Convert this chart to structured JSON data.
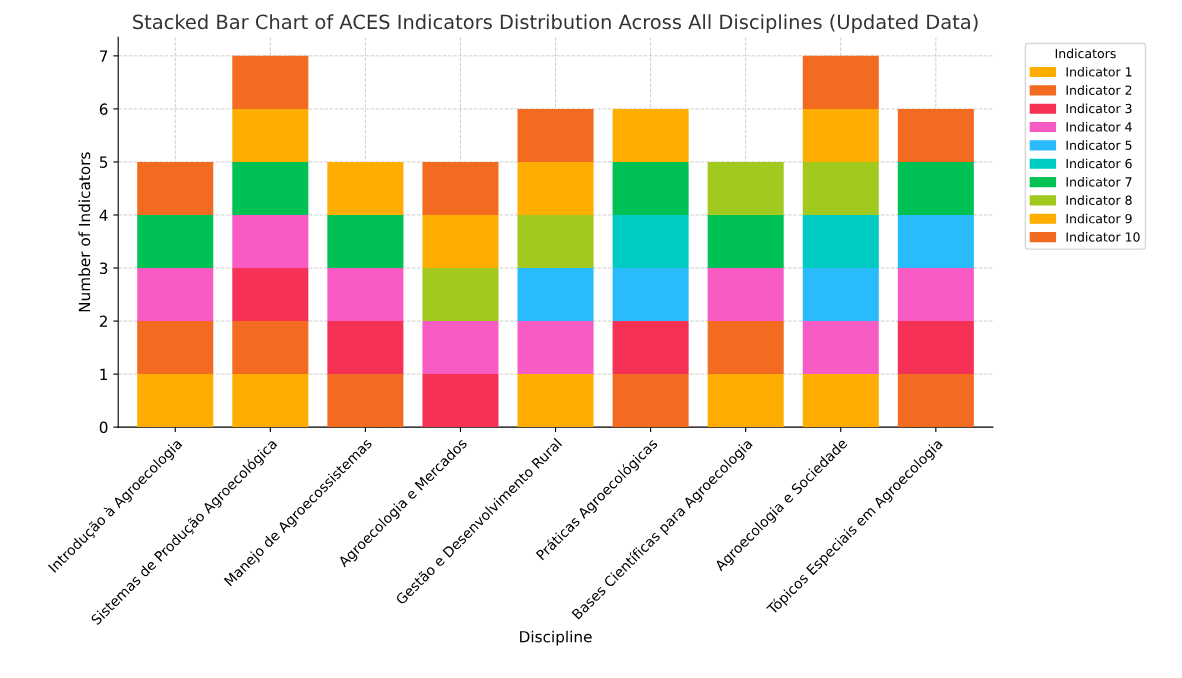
{
  "chart_data": {
    "type": "bar",
    "stacked": true,
    "title": "Stacked Bar Chart of ACES Indicators Distribution Across All Disciplines (Updated Data)",
    "xlabel": "Discipline",
    "ylabel": "Number of Indicators",
    "legend_title": "Indicators",
    "categories": [
      "Introdução à Agroecologia",
      "Sistemas de Produção Agroecológica",
      "Manejo de Agroecossistemas",
      "Agroecologia e Mercados",
      "Gestão e Desenvolvimento Rural",
      "Práticas Agroecológicas",
      "Bases Científicas para Agroecologia",
      "Agroecologia e Sociedade",
      "Tópicos Especiais em Agroecologia"
    ],
    "series": [
      {
        "name": "Indicator 1",
        "color": "#ffad00",
        "values": [
          1,
          1,
          null,
          null,
          1,
          null,
          1,
          1,
          null
        ]
      },
      {
        "name": "Indicator 2",
        "color": "#f26b21",
        "values": [
          1,
          1,
          1,
          null,
          null,
          1,
          1,
          null,
          1
        ]
      },
      {
        "name": "Indicator 3",
        "color": "#f53256",
        "values": [
          null,
          1,
          1,
          1,
          null,
          1,
          null,
          null,
          1
        ]
      },
      {
        "name": "Indicator 4",
        "color": "#f95bc4",
        "values": [
          1,
          1,
          1,
          1,
          1,
          null,
          1,
          1,
          1
        ]
      },
      {
        "name": "Indicator 5",
        "color": "#29bbfb",
        "values": [
          null,
          null,
          null,
          null,
          1,
          1,
          null,
          1,
          1
        ]
      },
      {
        "name": "Indicator 6",
        "color": "#00cbc3",
        "values": [
          null,
          null,
          null,
          null,
          null,
          1,
          null,
          1,
          null
        ]
      },
      {
        "name": "Indicator 7",
        "color": "#00c254",
        "values": [
          1,
          1,
          1,
          null,
          null,
          1,
          1,
          null,
          1
        ]
      },
      {
        "name": "Indicator 8",
        "color": "#a2c91e",
        "values": [
          null,
          null,
          null,
          1,
          1,
          null,
          1,
          1,
          null
        ]
      },
      {
        "name": "Indicator 9",
        "color": "#ffad00",
        "values": [
          null,
          1,
          1,
          1,
          1,
          1,
          null,
          1,
          null
        ]
      },
      {
        "name": "Indicator 10",
        "color": "#f26b21",
        "values": [
          1,
          1,
          null,
          1,
          1,
          null,
          null,
          1,
          1
        ]
      }
    ],
    "ylim": [
      0,
      7.35
    ],
    "yticks": [
      0,
      1,
      2,
      3,
      4,
      5,
      6,
      7
    ],
    "grid": true,
    "legend": "top right"
  }
}
